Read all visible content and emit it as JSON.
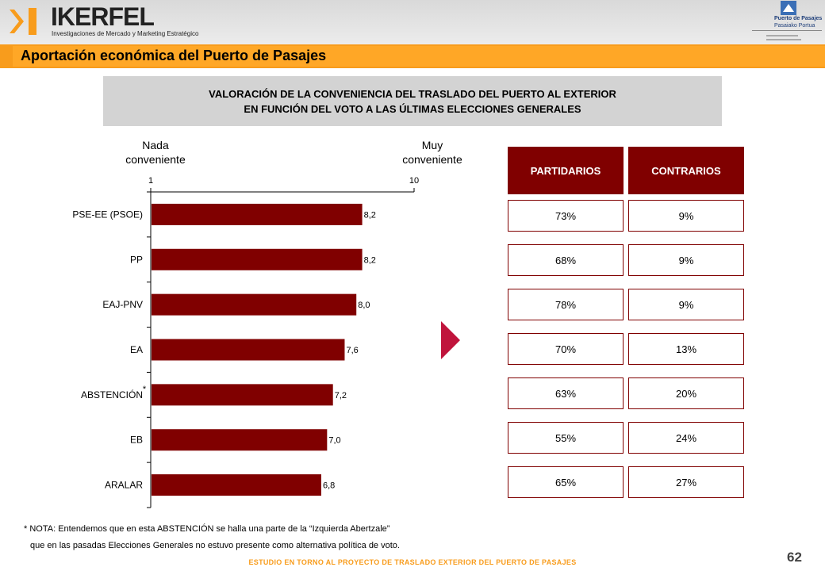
{
  "header": {
    "brand": "IKERFEL",
    "brand_tagline": "Investigaciones de Mercado y Marketing Estratégico",
    "port_logo_line1": "Puerto de Pasajes",
    "port_logo_line2": "Pasaiako Portua",
    "accent_color": "#f89c1c",
    "icons": [
      "ikerfel-logo-icon",
      "port-logo-icon"
    ]
  },
  "page": {
    "title": "Aportación económica del Puerto de Pasajes",
    "subtitle_line1": "VALORACIÓN DE LA CONVENIENCIA DEL TRASLADO DEL PUERTO AL EXTERIOR",
    "subtitle_line2": "EN FUNCIÓN DEL VOTO A LAS ÚLTIMAS ELECCIONES GENERALES",
    "page_number": "62",
    "footer": "ESTUDIO EN TORNO AL PROYECTO DE TRASLADO EXTERIOR DEL PUERTO DE PASAJES"
  },
  "chart_data": {
    "type": "bar",
    "orientation": "horizontal",
    "scale_min_label_line1": "Nada",
    "scale_min_label_line2": "conveniente",
    "scale_max_label_line1": "Muy",
    "scale_max_label_line2": "conveniente",
    "xlim": [
      1,
      10
    ],
    "xticks": [
      "1",
      "10"
    ],
    "categories": [
      "PSE-EE (PSOE)",
      "PP",
      "EAJ-PNV",
      "EA",
      "ABSTENCIÓN",
      "EB",
      "ARALAR"
    ],
    "values": [
      8.2,
      8.2,
      8.0,
      7.6,
      7.2,
      7.0,
      6.8
    ],
    "value_labels": [
      "8,2",
      "8,2",
      "8,0",
      "7,6",
      "7,2",
      "7,0",
      "6,8"
    ],
    "asterisk_category": "ABSTENCIÓN",
    "asterisk": "*",
    "bar_color": "#800000"
  },
  "table": {
    "headers": [
      "PARTIDARIOS",
      "CONTRARIOS"
    ],
    "rows": [
      [
        "73%",
        "9%"
      ],
      [
        "68%",
        "9%"
      ],
      [
        "78%",
        "9%"
      ],
      [
        "70%",
        "13%"
      ],
      [
        "63%",
        "20%"
      ],
      [
        "55%",
        "24%"
      ],
      [
        "65%",
        "27%"
      ]
    ],
    "header_color": "#800000"
  },
  "note": {
    "line1": "* NOTA: Entendemos que en esta ABSTENCIÓN se halla una parte de la “Izquierda Abertzale”",
    "line2": "que en las pasadas Elecciones Generales no estuvo presente como alternativa política de voto."
  }
}
